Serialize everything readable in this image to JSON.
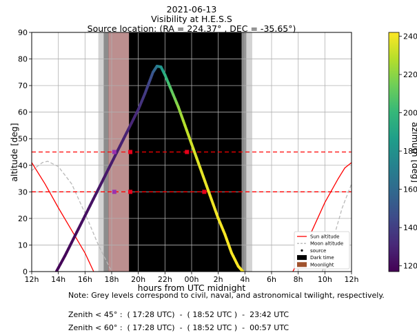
{
  "title_lines": [
    "2021-06-13",
    "Visibility at H.E.S.S",
    "Source location: (RA = 224.37° , DEC = -35.65°)"
  ],
  "note": "Note: Grey levels correspond to civil, naval, and astronomical twilight, respectively.",
  "zenith_lines": [
    "Zenith < 45° :  ( 17:28 UTC)  -  ( 18:52 UTC )  -  23:42 UTC",
    "Zenith < 60° :  ( 17:28 UTC)  -  ( 18:52 UTC )  -  00:57 UTC"
  ],
  "chart_data": {
    "type": "line",
    "title": "2021-06-13\nVisibility at H.E.S.S\nSource location: (RA = 224.37° , DEC = -35.65°)",
    "xlabel": "hours from UTC midnight",
    "ylabel": "altitude [deg]",
    "xlim": [
      -12,
      12
    ],
    "ylim": [
      0,
      90
    ],
    "x_tick_values": [
      -12,
      -10,
      -8,
      -6,
      -4,
      -2,
      0,
      2,
      4,
      6,
      8,
      10,
      12
    ],
    "x_tick_labels": [
      "12h",
      "14h",
      "16h",
      "18h",
      "20h",
      "22h",
      "00h",
      "2h",
      "4h",
      "6h",
      "8h",
      "10h",
      "12h"
    ],
    "y_ticks": [
      0,
      10,
      20,
      30,
      40,
      50,
      60,
      70,
      80,
      90
    ],
    "grid": true,
    "colorbar": {
      "label": "azimuth [deg]",
      "range": [
        117,
        242
      ],
      "ticks": [
        140,
        160,
        180,
        200,
        220,
        240
      ],
      "extra_tick": 120,
      "colormap": "viridis"
    },
    "twilight_bands": [
      {
        "name": "civil",
        "start": -7.0,
        "end": 4.55,
        "color": "#d3d3d3"
      },
      {
        "name": "naval",
        "start": -6.6,
        "end": 4.1,
        "color": "#8c8c8c"
      },
      {
        "name": "astronomical",
        "start": -6.25,
        "end": 3.75,
        "color": "#555555"
      }
    ],
    "dark_time": {
      "start": -6.25,
      "end": 3.75,
      "color": "#000000"
    },
    "moonlight": {
      "start": -6.25,
      "end": -4.7,
      "color": "#bc8f8f"
    },
    "threshold_lines": [
      30,
      45
    ],
    "series": [
      {
        "name": "Sun altitude",
        "color": "#ff0000",
        "segments": [
          [
            [
              -12,
              41
            ],
            [
              -11,
              33
            ],
            [
              -10,
              24
            ],
            [
              -9,
              15.5
            ],
            [
              -8,
              7
            ],
            [
              -7.35,
              0
            ]
          ],
          [
            [
              7.6,
              0
            ],
            [
              8,
              4
            ],
            [
              9,
              15
            ],
            [
              10,
              26
            ],
            [
              11,
              35
            ],
            [
              11.5,
              39
            ],
            [
              12,
              41
            ]
          ]
        ]
      },
      {
        "name": "Moon altitude",
        "color": "#b8b8b8",
        "segments": [
          [
            [
              -12,
              38
            ],
            [
              -11.2,
              41
            ],
            [
              -10.8,
              41.5
            ],
            [
              -10,
              39.5
            ],
            [
              -9,
              33
            ],
            [
              -8,
              22
            ],
            [
              -7,
              10
            ],
            [
              -6,
              0
            ]
          ],
          [
            [
              9.8,
              0
            ],
            [
              10.5,
              10
            ],
            [
              11.3,
              24
            ],
            [
              12,
              33
            ]
          ]
        ]
      },
      {
        "name": "source",
        "x": [
          -10.15,
          -9.5,
          -9,
          -8.5,
          -8,
          -7.5,
          -7,
          -6.5,
          -6,
          -5.5,
          -5,
          -4.5,
          -4,
          -3.5,
          -3.2,
          -2.9,
          -2.6,
          -2.3,
          -2,
          -1.5,
          -1,
          -0.5,
          0,
          0.5,
          1,
          1.5,
          2,
          2.5,
          3,
          3.5,
          3.85
        ],
        "y": [
          0,
          6,
          11,
          16,
          21,
          26,
          31,
          36,
          41,
          46,
          51,
          56,
          61,
          67,
          71,
          75,
          77.3,
          77,
          74,
          68,
          62,
          55,
          48,
          41,
          34,
          27,
          20,
          14,
          7,
          2,
          0
        ],
        "azimuth": [
          118,
          119,
          120,
          121,
          122,
          123,
          124,
          125,
          126,
          127,
          128,
          130,
          133,
          138,
          142,
          150,
          165,
          180,
          195,
          210,
          220,
          228,
          233,
          236,
          238,
          239,
          240,
          241,
          241,
          242,
          242
        ]
      },
      {
        "name": "Dark time",
        "color": "#000000"
      },
      {
        "name": "Moonlight",
        "color": "#a0522d"
      }
    ],
    "markers": [
      {
        "x": -5.8,
        "y": 45,
        "color": "#9b30ae"
      },
      {
        "x": -4.6,
        "y": 45,
        "color": "#e6001a"
      },
      {
        "x": -0.35,
        "y": 45,
        "color": "#e6001a"
      },
      {
        "x": -5.8,
        "y": 30,
        "color": "#9b30ae"
      },
      {
        "x": -4.6,
        "y": 30,
        "color": "#e6001a"
      },
      {
        "x": 0.95,
        "y": 30,
        "color": "#e6001a"
      }
    ],
    "legend_placement": "lower-right"
  }
}
